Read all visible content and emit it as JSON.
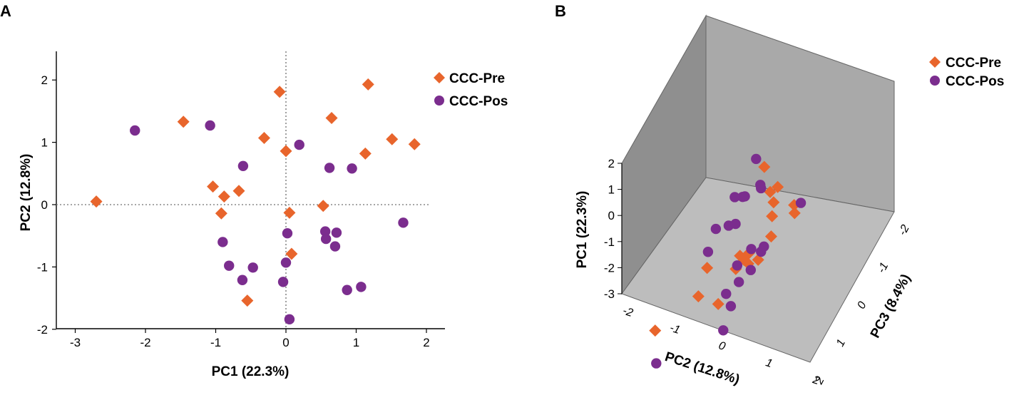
{
  "panels": {
    "a_label": "A",
    "b_label": "B"
  },
  "colors": {
    "pre": "#E8652C",
    "pos": "#7B2D8E",
    "wall_back": "#8f8f8f",
    "wall_side": "#a9a9a9",
    "floor": "#bdbdbd"
  },
  "legend": {
    "pre_label": "CCC-Pre",
    "pos_label": "CCC-Pos"
  },
  "chart_data": [
    {
      "panel": "A",
      "type": "scatter",
      "title": "",
      "xlabel": "PC1 (22.3%)",
      "ylabel": "PC2 (12.8%)",
      "xlim": [
        -3.3,
        2.25
      ],
      "ylim": [
        -2,
        2.45
      ],
      "xticks": [
        -3,
        -2,
        -1,
        0,
        1,
        2
      ],
      "yticks": [
        -2,
        -1,
        0,
        1,
        2
      ],
      "reference_lines": {
        "x": 0,
        "y": 0,
        "style": "dotted"
      },
      "legend_position": "top-right",
      "series": [
        {
          "name": "CCC-Pre",
          "marker": "diamond",
          "points": [
            [
              -2.7,
              0.05
            ],
            [
              -1.46,
              1.33
            ],
            [
              -1.04,
              0.29
            ],
            [
              -0.88,
              0.13
            ],
            [
              -0.92,
              -0.14
            ],
            [
              -0.67,
              0.22
            ],
            [
              -0.31,
              1.07
            ],
            [
              -0.09,
              1.81
            ],
            [
              0.0,
              0.86
            ],
            [
              0.05,
              -0.13
            ],
            [
              0.08,
              -0.79
            ],
            [
              -0.55,
              -1.54
            ],
            [
              0.53,
              -0.02
            ],
            [
              0.65,
              1.39
            ],
            [
              1.17,
              1.93
            ],
            [
              1.13,
              0.82
            ],
            [
              1.51,
              1.05
            ],
            [
              1.83,
              0.97
            ]
          ]
        },
        {
          "name": "CCC-Pos",
          "marker": "circle",
          "points": [
            [
              -2.15,
              1.19
            ],
            [
              -1.08,
              1.27
            ],
            [
              -0.61,
              0.62
            ],
            [
              0.19,
              0.96
            ],
            [
              0.62,
              0.59
            ],
            [
              0.94,
              0.58
            ],
            [
              -0.9,
              -0.6
            ],
            [
              -0.81,
              -0.98
            ],
            [
              -0.47,
              -1.01
            ],
            [
              -0.62,
              -1.21
            ],
            [
              0.02,
              -0.46
            ],
            [
              0.0,
              -0.93
            ],
            [
              -0.04,
              -1.24
            ],
            [
              0.05,
              -1.84
            ],
            [
              0.56,
              -0.43
            ],
            [
              0.57,
              -0.55
            ],
            [
              0.72,
              -0.45
            ],
            [
              0.7,
              -0.67
            ],
            [
              0.87,
              -1.37
            ],
            [
              1.07,
              -1.32
            ],
            [
              1.67,
              -0.29
            ]
          ]
        }
      ]
    },
    {
      "panel": "B",
      "type": "scatter",
      "projection": "3d",
      "title": "",
      "xlabel": "PC2 (12.8%)",
      "ylabel": "PC1 (22.3%)",
      "zlabel": "PC3 (8.4%)",
      "pc1_ticks": [
        "2",
        "1",
        "0",
        "-1",
        "-2",
        "-3"
      ],
      "pc2_ticks": [
        "-2",
        "-1",
        "0",
        "1",
        "2"
      ],
      "pc3_ticks": [
        "-2",
        "-1",
        "0",
        "1",
        "2"
      ],
      "legend_position": "top-right",
      "series": [
        {
          "name": "CCC-Pre",
          "marker": "diamond",
          "points": [
            [
              1.61,
              -1.53,
              -2.64
            ],
            [
              1.14,
              -1.02,
              -1.26
            ],
            [
              1.78,
              -1.23,
              1.73
            ],
            [
              0.84,
              -0.94,
              1.72
            ],
            [
              0.4,
              -0.81,
              1.75
            ],
            [
              0.41,
              -0.57,
              1.47
            ],
            [
              1.01,
              0.2,
              1.72
            ],
            [
              1.05,
              0.4,
              1.56
            ],
            [
              1.4,
              -0.15,
              -0.1
            ],
            [
              1.45,
              -0.1,
              0.07
            ],
            [
              0.99,
              -0.11,
              0.05
            ],
            [
              1.39,
              0.26,
              0.69
            ],
            [
              1.76,
              0.48,
              -0.06
            ],
            [
              1.76,
              -0.07,
              -0.52
            ],
            [
              1.76,
              -0.38,
              1.54
            ],
            [
              1.76,
              -1.04,
              -0.87
            ],
            [
              1.13,
              -0.21,
              -1.14
            ],
            [
              0.59,
              -0.73,
              0.25
            ]
          ]
        },
        {
          "name": "CCC-Pos",
          "marker": "circle",
          "points": [
            [
              1.66,
              -1.72,
              1.82
            ],
            [
              1.12,
              -1.56,
              1.2
            ],
            [
              0.75,
              -1.79,
              1.31
            ],
            [
              1.41,
              -1.5,
              -0.42
            ],
            [
              1.43,
              -1.74,
              0.93
            ],
            [
              0.82,
              -1.33,
              1.68
            ],
            [
              1.2,
              -1.25,
              1.58
            ],
            [
              1.4,
              -1.72,
              0.11
            ],
            [
              1.54,
              -1.3,
              0.28
            ],
            [
              1.69,
              -1.04,
              0.34
            ],
            [
              1.35,
              -0.28,
              -0.27
            ],
            [
              1.56,
              -0.06,
              0.13
            ],
            [
              1.3,
              0.24,
              -0.16
            ],
            [
              1.63,
              0.35,
              0.18
            ],
            [
              1.77,
              0.72,
              1.54
            ],
            [
              1.81,
              0.42,
              0.24
            ],
            [
              0.06,
              -0.64,
              -0.42
            ],
            [
              1.51,
              0.19,
              -0.62
            ],
            [
              0.79,
              0.1,
              -0.88
            ],
            [
              0.71,
              -1.22,
              -2.87
            ],
            [
              -2.23,
              -1.01,
              -0.21
            ]
          ]
        }
      ]
    }
  ]
}
